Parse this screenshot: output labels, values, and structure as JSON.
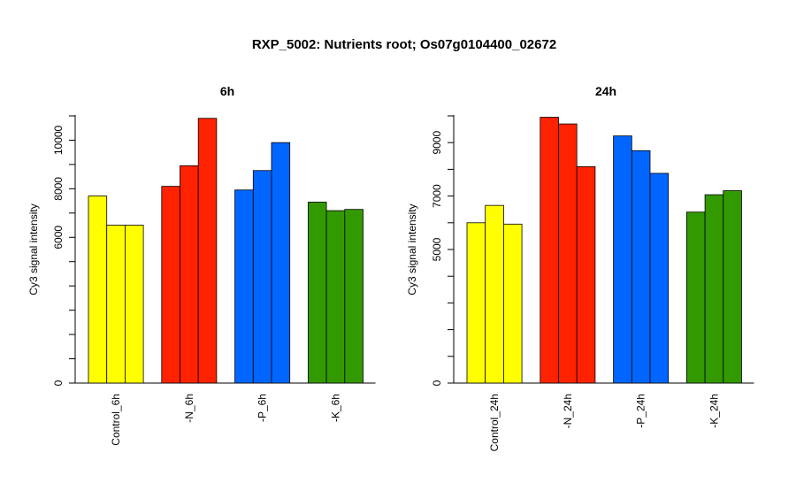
{
  "title": "RXP_5002: Nutrients root; Os07g0104400_02672",
  "colors": {
    "control": "#ffff00",
    "N": "#ff2200",
    "P": "#0066ff",
    "K": "#339900"
  },
  "chart_data": [
    {
      "type": "bar",
      "title": "6h",
      "ylabel": "Cy3 signal intensity",
      "ylim": [
        0,
        11000
      ],
      "yticks": [
        0,
        6000,
        8000,
        10000
      ],
      "ytick_labels": [
        "0",
        "6000",
        "8000",
        "10000"
      ],
      "groups": [
        {
          "label": "Control_6h",
          "color_key": "control",
          "values": [
            7700,
            6500,
            6500
          ]
        },
        {
          "label": "-N_6h",
          "color_key": "N",
          "values": [
            8100,
            8950,
            10900
          ]
        },
        {
          "label": "-P_6h",
          "color_key": "P",
          "values": [
            7950,
            8750,
            9900
          ]
        },
        {
          "label": "-K_6h",
          "color_key": "K",
          "values": [
            7450,
            7100,
            7150
          ]
        }
      ]
    },
    {
      "type": "bar",
      "title": "24h",
      "ylabel": "Cy3 signal intensity",
      "ylim": [
        0,
        10000
      ],
      "yticks": [
        0,
        5000,
        7000,
        9000
      ],
      "ytick_labels": [
        "0",
        "5000",
        "7000",
        "9000"
      ],
      "groups": [
        {
          "label": "Control_24h",
          "color_key": "control",
          "values": [
            6000,
            6650,
            5950
          ]
        },
        {
          "label": "-N_24h",
          "color_key": "N",
          "values": [
            9950,
            9700,
            8100
          ]
        },
        {
          "label": "-P_24h",
          "color_key": "P",
          "values": [
            9250,
            8700,
            7850
          ]
        },
        {
          "label": "-K_24h",
          "color_key": "K",
          "values": [
            6400,
            7050,
            7200
          ]
        }
      ]
    }
  ]
}
